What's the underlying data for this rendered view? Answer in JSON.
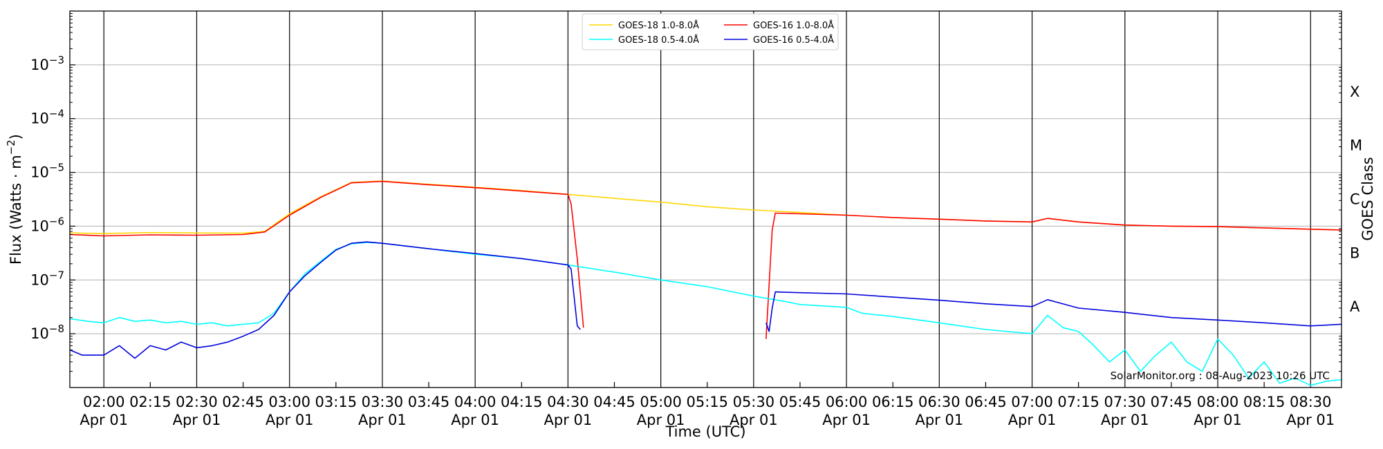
{
  "chart_data": {
    "type": "line",
    "xlabel": "Time (UTC)",
    "ylabel_main": "Flux (Watts · m",
    "ylabel_exp": "−2",
    "ylabel_close": ")",
    "y2label": "GOES Class",
    "credit": "SolarMonitor.org : 08-Aug-2023 10:26 UTC",
    "yscale": "log",
    "ylim": [
      1e-09,
      0.01
    ],
    "xlim": [
      "01:49",
      "08:40"
    ],
    "x_tick_times": [
      "02:00",
      "02:15",
      "02:30",
      "02:45",
      "03:00",
      "03:15",
      "03:30",
      "03:45",
      "04:00",
      "04:15",
      "04:30",
      "04:45",
      "05:00",
      "05:15",
      "05:30",
      "05:45",
      "06:00",
      "06:15",
      "06:30",
      "06:45",
      "07:00",
      "07:15",
      "07:30",
      "07:45",
      "08:00",
      "08:15",
      "08:30"
    ],
    "x_date_label": "Apr 01",
    "x_date_every": 30,
    "y_ticks": [
      {
        "value": 1e-08,
        "base": "10",
        "exp": "−8"
      },
      {
        "value": 1e-07,
        "base": "10",
        "exp": "−7"
      },
      {
        "value": 1e-06,
        "base": "10",
        "exp": "−6"
      },
      {
        "value": 1e-05,
        "base": "10",
        "exp": "−5"
      },
      {
        "value": 0.0001,
        "base": "10",
        "exp": "−4"
      },
      {
        "value": 0.001,
        "base": "10",
        "exp": "−3"
      }
    ],
    "goes_classes": [
      {
        "label": "A",
        "value": 3.16e-08
      },
      {
        "label": "B",
        "value": 3.16e-07
      },
      {
        "label": "C",
        "value": 3.16e-06
      },
      {
        "label": "M",
        "value": 3.16e-05
      },
      {
        "label": "X",
        "value": 0.000316
      }
    ],
    "grid": "horizontal at decades; vertical at half-hours",
    "legend_position": "top-center",
    "series": [
      {
        "name": "GOES-18 1.0-8.0Å",
        "color": "#ffd700",
        "points": [
          [
            "01:49",
            7.5e-07
          ],
          [
            "02:00",
            7.3e-07
          ],
          [
            "02:15",
            7.6e-07
          ],
          [
            "02:30",
            7.5e-07
          ],
          [
            "02:45",
            7.4e-07
          ],
          [
            "02:52",
            8e-07
          ],
          [
            "03:00",
            1.7e-06
          ],
          [
            "03:10",
            3.5e-06
          ],
          [
            "03:20",
            6.5e-06
          ],
          [
            "03:30",
            6.9e-06
          ],
          [
            "03:45",
            6e-06
          ],
          [
            "04:00",
            5.3e-06
          ],
          [
            "04:15",
            4.6e-06
          ],
          [
            "04:30",
            3.9e-06
          ],
          [
            "04:45",
            3.3e-06
          ],
          [
            "05:00",
            2.8e-06
          ],
          [
            "05:15",
            2.3e-06
          ],
          [
            "05:30",
            2e-06
          ],
          [
            "05:45",
            1.8e-06
          ],
          [
            "06:00",
            1.6e-06
          ],
          [
            "06:15",
            1.45e-06
          ],
          [
            "06:30",
            1.35e-06
          ],
          [
            "06:45",
            1.25e-06
          ],
          [
            "07:00",
            1.2e-06
          ],
          [
            "07:05",
            1.4e-06
          ],
          [
            "07:15",
            1.2e-06
          ],
          [
            "07:30",
            1.05e-06
          ],
          [
            "07:45",
            1e-06
          ],
          [
            "08:00",
            9.8e-07
          ],
          [
            "08:15",
            9.3e-07
          ],
          [
            "08:30",
            8.8e-07
          ],
          [
            "08:40",
            8.5e-07
          ]
        ]
      },
      {
        "name": "GOES-16 1.0-8.0Å",
        "color": "#ff0000",
        "points": [
          [
            "01:49",
            7e-07
          ],
          [
            "02:00",
            6.6e-07
          ],
          [
            "02:15",
            6.9e-07
          ],
          [
            "02:30",
            6.8e-07
          ],
          [
            "02:45",
            7e-07
          ],
          [
            "02:52",
            7.8e-07
          ],
          [
            "03:00",
            1.6e-06
          ],
          [
            "03:10",
            3.4e-06
          ],
          [
            "03:20",
            6.4e-06
          ],
          [
            "03:30",
            6.8e-06
          ],
          [
            "03:45",
            5.9e-06
          ],
          [
            "04:00",
            5.2e-06
          ],
          [
            "04:15",
            4.5e-06
          ],
          [
            "04:30",
            3.9e-06
          ],
          [
            "04:31",
            2.6e-06
          ],
          [
            "04:33",
            2.5e-07
          ],
          [
            "04:35",
            1.3e-08
          ],
          null,
          [
            "05:34",
            8e-09
          ],
          [
            "05:36",
            8.5e-07
          ],
          [
            "05:37",
            1.75e-06
          ],
          [
            "05:45",
            1.7e-06
          ],
          [
            "06:00",
            1.6e-06
          ],
          [
            "06:15",
            1.45e-06
          ],
          [
            "06:30",
            1.35e-06
          ],
          [
            "06:45",
            1.25e-06
          ],
          [
            "07:00",
            1.2e-06
          ],
          [
            "07:05",
            1.4e-06
          ],
          [
            "07:15",
            1.2e-06
          ],
          [
            "07:30",
            1.05e-06
          ],
          [
            "07:45",
            1e-06
          ],
          [
            "08:00",
            9.8e-07
          ],
          [
            "08:15",
            9.3e-07
          ],
          [
            "08:30",
            8.8e-07
          ],
          [
            "08:40",
            8.5e-07
          ]
        ]
      },
      {
        "name": "GOES-18 0.5-4.0Å",
        "color": "#00ffff",
        "points": [
          [
            "01:49",
            1.9e-08
          ],
          [
            "01:55",
            1.7e-08
          ],
          [
            "02:00",
            1.6e-08
          ],
          [
            "02:05",
            2e-08
          ],
          [
            "02:10",
            1.7e-08
          ],
          [
            "02:15",
            1.8e-08
          ],
          [
            "02:20",
            1.6e-08
          ],
          [
            "02:25",
            1.7e-08
          ],
          [
            "02:30",
            1.5e-08
          ],
          [
            "02:35",
            1.6e-08
          ],
          [
            "02:40",
            1.4e-08
          ],
          [
            "02:45",
            1.5e-08
          ],
          [
            "02:50",
            1.6e-08
          ],
          [
            "02:55",
            2.4e-08
          ],
          [
            "03:00",
            6e-08
          ],
          [
            "03:05",
            1.3e-07
          ],
          [
            "03:10",
            2.2e-07
          ],
          [
            "03:15",
            3.7e-07
          ],
          [
            "03:20",
            4.7e-07
          ],
          [
            "03:25",
            5e-07
          ],
          [
            "03:30",
            4.8e-07
          ],
          [
            "03:45",
            3.8e-07
          ],
          [
            "04:00",
            3e-07
          ],
          [
            "04:15",
            2.5e-07
          ],
          [
            "04:30",
            1.9e-07
          ],
          [
            "04:45",
            1.4e-07
          ],
          [
            "05:00",
            1e-07
          ],
          [
            "05:15",
            7.5e-08
          ],
          [
            "05:30",
            5e-08
          ],
          [
            "05:40",
            4e-08
          ],
          [
            "05:45",
            3.5e-08
          ],
          [
            "06:00",
            3.1e-08
          ],
          [
            "06:05",
            2.4e-08
          ],
          [
            "06:15",
            2.1e-08
          ],
          [
            "06:30",
            1.6e-08
          ],
          [
            "06:45",
            1.2e-08
          ],
          [
            "07:00",
            1e-08
          ],
          [
            "07:05",
            2.2e-08
          ],
          [
            "07:10",
            1.3e-08
          ],
          [
            "07:15",
            1.1e-08
          ],
          [
            "07:20",
            6e-09
          ],
          [
            "07:25",
            3e-09
          ],
          [
            "07:30",
            5e-09
          ],
          [
            "07:35",
            2e-09
          ],
          [
            "07:40",
            4e-09
          ],
          [
            "07:45",
            7e-09
          ],
          [
            "07:50",
            3e-09
          ],
          [
            "07:55",
            2e-09
          ],
          [
            "08:00",
            8e-09
          ],
          [
            "08:05",
            4e-09
          ],
          [
            "08:10",
            1.5e-09
          ],
          [
            "08:15",
            3e-09
          ],
          [
            "08:20",
            1.2e-09
          ],
          [
            "08:25",
            1.5e-09
          ],
          [
            "08:30",
            1.1e-09
          ],
          [
            "08:35",
            1.3e-09
          ],
          [
            "08:40",
            1.4e-09
          ]
        ]
      },
      {
        "name": "GOES-16 0.5-4.0Å",
        "color": "#0000dd",
        "points": [
          [
            "01:49",
            5e-09
          ],
          [
            "01:53",
            4e-09
          ],
          [
            "02:00",
            4e-09
          ],
          [
            "02:05",
            6e-09
          ],
          [
            "02:10",
            3.5e-09
          ],
          [
            "02:15",
            6e-09
          ],
          [
            "02:20",
            5e-09
          ],
          [
            "02:25",
            7e-09
          ],
          [
            "02:30",
            5.5e-09
          ],
          [
            "02:35",
            6e-09
          ],
          [
            "02:40",
            7e-09
          ],
          [
            "02:45",
            9e-09
          ],
          [
            "02:50",
            1.2e-08
          ],
          [
            "02:55",
            2.2e-08
          ],
          [
            "03:00",
            6e-08
          ],
          [
            "03:05",
            1.2e-07
          ],
          [
            "03:10",
            2.1e-07
          ],
          [
            "03:15",
            3.6e-07
          ],
          [
            "03:20",
            4.8e-07
          ],
          [
            "03:25",
            5.1e-07
          ],
          [
            "03:30",
            4.8e-07
          ],
          [
            "03:45",
            3.8e-07
          ],
          [
            "04:00",
            3.1e-07
          ],
          [
            "04:15",
            2.5e-07
          ],
          [
            "04:30",
            1.9e-07
          ],
          [
            "04:31",
            1.6e-07
          ],
          [
            "04:33",
            1.4e-08
          ],
          [
            "04:34",
            1.2e-08
          ],
          null,
          [
            "05:34",
            1.6e-08
          ],
          [
            "05:35",
            1.1e-08
          ],
          [
            "05:36",
            3e-08
          ],
          [
            "05:37",
            6e-08
          ],
          [
            "05:45",
            5.8e-08
          ],
          [
            "06:00",
            5.5e-08
          ],
          [
            "06:15",
            4.8e-08
          ],
          [
            "06:30",
            4.2e-08
          ],
          [
            "06:45",
            3.6e-08
          ],
          [
            "07:00",
            3.2e-08
          ],
          [
            "07:05",
            4.3e-08
          ],
          [
            "07:15",
            3e-08
          ],
          [
            "07:30",
            2.5e-08
          ],
          [
            "07:45",
            2e-08
          ],
          [
            "08:00",
            1.8e-08
          ],
          [
            "08:15",
            1.6e-08
          ],
          [
            "08:30",
            1.4e-08
          ],
          [
            "08:40",
            1.5e-08
          ]
        ]
      }
    ]
  }
}
